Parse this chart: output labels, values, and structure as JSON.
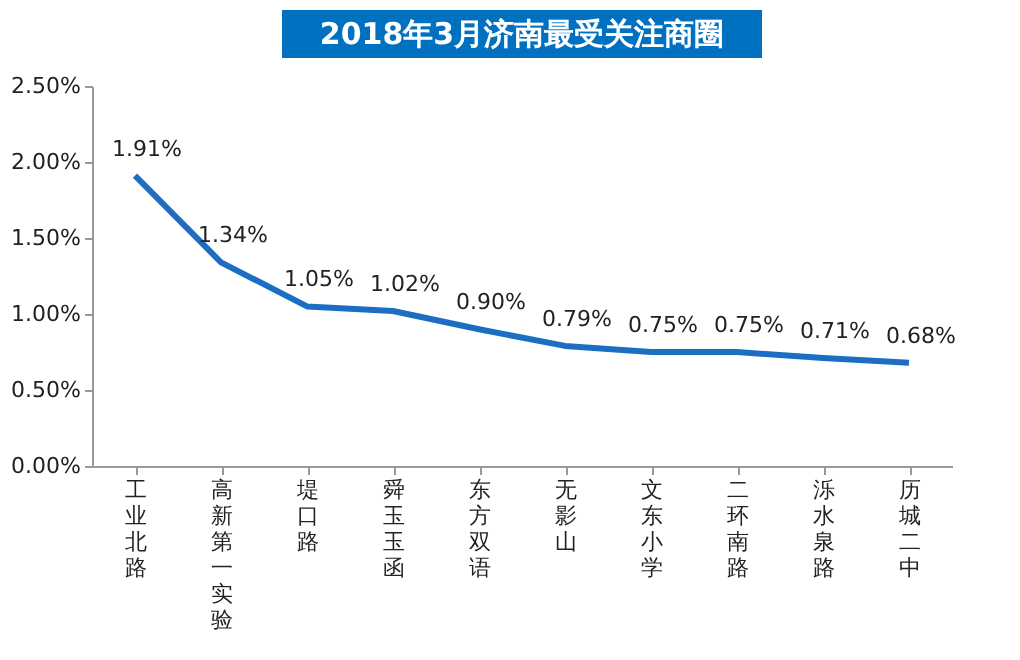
{
  "chart_data": {
    "type": "line",
    "title": "2018年3月济南最受关注商圈",
    "categories": [
      "工业北路",
      "高新第一实验",
      "堤口路",
      "舜玉玉函",
      "东方双语",
      "无影山",
      "文东小学",
      "二环南路",
      "泺水泉路",
      "历城二中"
    ],
    "series": [
      {
        "color": "#1b6ec2",
        "values": [
          1.91,
          1.34,
          1.05,
          1.02,
          0.9,
          0.79,
          0.75,
          0.75,
          0.71,
          0.68
        ],
        "value_labels": [
          "1.91%",
          "1.34%",
          "1.05%",
          "1.02%",
          "0.90%",
          "0.79%",
          "0.75%",
          "0.75%",
          "0.71%",
          "0.68%"
        ]
      }
    ],
    "ylim": [
      0,
      2.5
    ],
    "yticks": [
      {
        "value": 0,
        "label": "0.00%"
      },
      {
        "value": 0.5,
        "label": "0.50%"
      },
      {
        "value": 1,
        "label": "1.00%"
      },
      {
        "value": 1.5,
        "label": "1.50%"
      },
      {
        "value": 2,
        "label": "2.00%"
      },
      {
        "value": 2.5,
        "label": "2.50%"
      }
    ],
    "grid": false,
    "legend": false,
    "marker": "none",
    "line_style": "solid"
  }
}
